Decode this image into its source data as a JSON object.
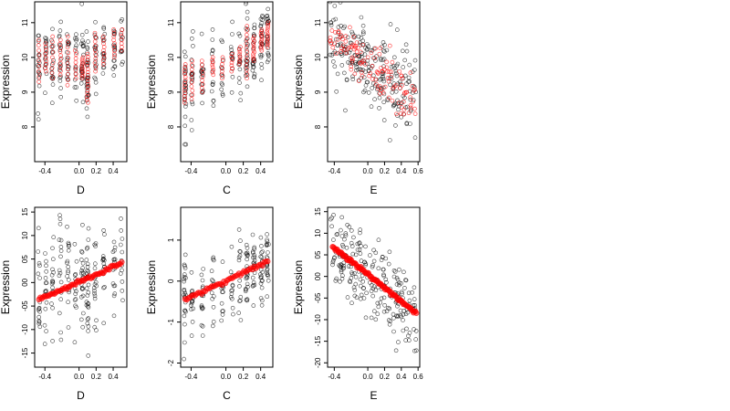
{
  "chart_data": [
    {
      "type": "scatter",
      "panel": "top-left",
      "xlabel": "D",
      "ylabel": "Expression",
      "xlim": [
        -0.52,
        0.56
      ],
      "ylim": [
        7.0,
        11.6
      ],
      "xticks": [
        -0.4,
        0.0,
        0.2,
        0.4
      ],
      "xtick_labels": [
        "-0.4",
        "0.0",
        "0.2",
        "0.4"
      ],
      "yticks": [
        8,
        9,
        10,
        11
      ],
      "ytick_labels": [
        "8",
        "9",
        "10",
        "11"
      ],
      "grid": false,
      "black_color": "#000000",
      "red_color": "#ff0000",
      "clusters": [
        {
          "x": -0.47,
          "mean": 9.9,
          "sd": 0.55,
          "n": 16,
          "red_lo": 9.3,
          "red_hi": 10.5
        },
        {
          "x": -0.39,
          "mean": 10.0,
          "sd": 0.6,
          "n": 16,
          "red_lo": 9.6,
          "red_hi": 10.4
        },
        {
          "x": -0.31,
          "mean": 9.95,
          "sd": 0.6,
          "n": 16,
          "red_lo": 9.4,
          "red_hi": 10.6
        },
        {
          "x": -0.22,
          "mean": 9.9,
          "sd": 0.65,
          "n": 18,
          "red_lo": 9.5,
          "red_hi": 10.5
        },
        {
          "x": -0.13,
          "mean": 9.9,
          "sd": 0.6,
          "n": 18,
          "red_lo": 9.2,
          "red_hi": 10.6
        },
        {
          "x": -0.04,
          "mean": 9.8,
          "sd": 0.6,
          "n": 14,
          "red_lo": 9.4,
          "red_hi": 10.2
        },
        {
          "x": 0.04,
          "mean": 9.8,
          "sd": 0.6,
          "n": 22,
          "red_lo": 9.4,
          "red_hi": 10.0
        },
        {
          "x": 0.1,
          "mean": 9.4,
          "sd": 0.6,
          "n": 30,
          "red_lo": 8.7,
          "red_hi": 10.1
        },
        {
          "x": 0.19,
          "mean": 10.1,
          "sd": 0.6,
          "n": 18,
          "red_lo": 9.6,
          "red_hi": 10.7
        },
        {
          "x": 0.29,
          "mean": 10.2,
          "sd": 0.55,
          "n": 16,
          "red_lo": 9.8,
          "red_hi": 10.6
        },
        {
          "x": 0.41,
          "mean": 10.3,
          "sd": 0.5,
          "n": 16,
          "red_lo": 10.0,
          "red_hi": 10.8
        },
        {
          "x": 0.5,
          "mean": 10.5,
          "sd": 0.45,
          "n": 12,
          "red_lo": 10.2,
          "red_hi": 10.8
        }
      ]
    },
    {
      "type": "scatter",
      "panel": "top-middle",
      "xlabel": "C",
      "ylabel": "Expression",
      "xlim": [
        -0.52,
        0.54
      ],
      "ylim": [
        7.0,
        11.6
      ],
      "xticks": [
        -0.4,
        0.0,
        0.2,
        0.4
      ],
      "xtick_labels": [
        "-0.4",
        "0.0",
        "0.2",
        "0.4"
      ],
      "yticks": [
        8,
        9,
        10,
        11
      ],
      "ytick_labels": [
        "8",
        "9",
        "10",
        "11"
      ],
      "grid": false,
      "black_color": "#000000",
      "red_color": "#ff0000",
      "clusters": [
        {
          "x": -0.47,
          "mean": 9.1,
          "sd": 0.65,
          "n": 24,
          "red_lo": 8.7,
          "red_hi": 9.8
        },
        {
          "x": -0.39,
          "mean": 9.3,
          "sd": 0.6,
          "n": 18,
          "red_lo": 8.8,
          "red_hi": 9.9
        },
        {
          "x": -0.27,
          "mean": 9.4,
          "sd": 0.55,
          "n": 16,
          "red_lo": 9.0,
          "red_hi": 9.9
        },
        {
          "x": -0.15,
          "mean": 9.7,
          "sd": 0.5,
          "n": 14,
          "red_lo": 9.5,
          "red_hi": 10.0
        },
        {
          "x": -0.04,
          "mean": 9.6,
          "sd": 0.5,
          "n": 12,
          "red_lo": 9.4,
          "red_hi": 10.0
        },
        {
          "x": 0.07,
          "mean": 9.8,
          "sd": 0.5,
          "n": 12,
          "red_lo": 9.6,
          "red_hi": 10.1
        },
        {
          "x": 0.16,
          "mean": 10.0,
          "sd": 0.5,
          "n": 14,
          "red_lo": 9.8,
          "red_hi": 10.3
        },
        {
          "x": 0.24,
          "mean": 10.1,
          "sd": 0.6,
          "n": 24,
          "red_lo": 9.4,
          "red_hi": 10.9
        },
        {
          "x": 0.32,
          "mean": 10.2,
          "sd": 0.55,
          "n": 22,
          "red_lo": 9.9,
          "red_hi": 10.6
        },
        {
          "x": 0.41,
          "mean": 10.4,
          "sd": 0.5,
          "n": 22,
          "red_lo": 10.2,
          "red_hi": 10.8
        },
        {
          "x": 0.48,
          "mean": 10.6,
          "sd": 0.45,
          "n": 22,
          "red_lo": 10.3,
          "red_hi": 11.0
        }
      ]
    },
    {
      "type": "scatter",
      "panel": "top-right",
      "xlabel": "E",
      "ylabel": "Expression",
      "xlim": [
        -0.48,
        0.62
      ],
      "ylim": [
        7.0,
        11.6
      ],
      "xticks": [
        -0.4,
        0.0,
        0.2,
        0.4,
        0.6
      ],
      "xtick_labels": [
        "-0.4",
        "0.0",
        "0.2",
        "0.4",
        "0.6"
      ],
      "yticks": [
        8,
        9,
        10,
        11
      ],
      "ytick_labels": [
        "8",
        "9",
        "10",
        "11"
      ],
      "grid": false,
      "black_color": "#000000",
      "red_color": "#ff0000",
      "cloud": {
        "x_min": -0.45,
        "x_max": 0.58,
        "n": 230,
        "y_at_xmin": 10.5,
        "y_at_xmax": 8.8,
        "sd": 0.6
      },
      "red_cloud": {
        "x_min": -0.45,
        "x_max": 0.58,
        "n": 120,
        "y_at_xmin": 10.6,
        "y_at_xmax": 8.7,
        "sd": 0.35
      }
    },
    {
      "type": "scatter",
      "panel": "bottom-left",
      "xlabel": "D",
      "ylabel": "Expression",
      "xlim": [
        -0.52,
        0.56
      ],
      "ylim": [
        -1.8,
        1.6
      ],
      "xticks": [
        -0.4,
        0.0,
        0.2,
        0.4
      ],
      "xtick_labels": [
        "-0.4",
        "0.0",
        "0.2",
        "0.4"
      ],
      "yticks": [
        -1.5,
        -1.0,
        -0.5,
        0.0,
        0.5,
        1.0,
        1.5
      ],
      "ytick_labels": [
        "-15",
        "-10",
        "-05",
        "00",
        "05",
        "10",
        "15"
      ],
      "grid": false,
      "black_color": "#000000",
      "red_color": "#ff0000",
      "clusters": [
        {
          "x": -0.47,
          "mean": -0.3,
          "sd": 0.5,
          "n": 16
        },
        {
          "x": -0.39,
          "mean": -0.25,
          "sd": 0.55,
          "n": 16
        },
        {
          "x": -0.31,
          "mean": -0.1,
          "sd": 0.55,
          "n": 16
        },
        {
          "x": -0.22,
          "mean": -0.05,
          "sd": 0.6,
          "n": 18
        },
        {
          "x": -0.13,
          "mean": 0.0,
          "sd": 0.6,
          "n": 18
        },
        {
          "x": -0.04,
          "mean": 0.05,
          "sd": 0.55,
          "n": 14
        },
        {
          "x": 0.04,
          "mean": 0.05,
          "sd": 0.55,
          "n": 22
        },
        {
          "x": 0.1,
          "mean": -0.05,
          "sd": 0.55,
          "n": 30
        },
        {
          "x": 0.19,
          "mean": 0.2,
          "sd": 0.55,
          "n": 18
        },
        {
          "x": 0.29,
          "mean": 0.3,
          "sd": 0.5,
          "n": 16
        },
        {
          "x": 0.41,
          "mean": 0.4,
          "sd": 0.45,
          "n": 16
        },
        {
          "x": 0.5,
          "mean": 0.45,
          "sd": 0.4,
          "n": 12
        }
      ],
      "fit": {
        "x_min": -0.47,
        "x_max": 0.5,
        "y_at_xmin": -0.38,
        "y_at_xmax": 0.42,
        "n": 60
      }
    },
    {
      "type": "scatter",
      "panel": "bottom-middle",
      "xlabel": "C",
      "ylabel": "Expression",
      "xlim": [
        -0.52,
        0.54
      ],
      "ylim": [
        -2.1,
        1.8
      ],
      "xticks": [
        -0.4,
        0.0,
        0.2,
        0.4
      ],
      "xtick_labels": [
        "-0.4",
        "0.0",
        "0.2",
        "0.4"
      ],
      "yticks": [
        -2,
        -1,
        0,
        1
      ],
      "ytick_labels": [
        "-2",
        "-1",
        "0",
        "1"
      ],
      "grid": false,
      "black_color": "#000000",
      "red_color": "#ff0000",
      "clusters": [
        {
          "x": -0.47,
          "mean": -0.5,
          "sd": 0.55,
          "n": 24
        },
        {
          "x": -0.39,
          "mean": -0.4,
          "sd": 0.5,
          "n": 18
        },
        {
          "x": -0.27,
          "mean": -0.3,
          "sd": 0.5,
          "n": 16
        },
        {
          "x": -0.15,
          "mean": -0.15,
          "sd": 0.45,
          "n": 14
        },
        {
          "x": -0.04,
          "mean": -0.05,
          "sd": 0.45,
          "n": 12
        },
        {
          "x": 0.07,
          "mean": 0.05,
          "sd": 0.45,
          "n": 12
        },
        {
          "x": 0.16,
          "mean": 0.15,
          "sd": 0.45,
          "n": 14
        },
        {
          "x": 0.24,
          "mean": 0.25,
          "sd": 0.55,
          "n": 24
        },
        {
          "x": 0.32,
          "mean": 0.3,
          "sd": 0.5,
          "n": 22
        },
        {
          "x": 0.41,
          "mean": 0.4,
          "sd": 0.5,
          "n": 22
        },
        {
          "x": 0.48,
          "mean": 0.45,
          "sd": 0.45,
          "n": 22
        }
      ],
      "fit": {
        "x_min": -0.47,
        "x_max": 0.48,
        "y_at_xmin": -0.45,
        "y_at_xmax": 0.48,
        "n": 50
      }
    },
    {
      "type": "scatter",
      "panel": "bottom-right",
      "xlabel": "E",
      "ylabel": "Expression",
      "xlim": [
        -0.48,
        0.62
      ],
      "ylim": [
        -2.1,
        1.6
      ],
      "xticks": [
        -0.4,
        0.0,
        0.2,
        0.4,
        0.6
      ],
      "xtick_labels": [
        "-0.4",
        "0.0",
        "0.2",
        "0.4",
        "0.6"
      ],
      "yticks": [
        -2.0,
        -1.5,
        -1.0,
        -0.5,
        0.0,
        0.5,
        1.0,
        1.5
      ],
      "ytick_labels": [
        "-20",
        "-15",
        "-10",
        "-05",
        "00",
        "05",
        "10",
        "15"
      ],
      "grid": false,
      "black_color": "#000000",
      "red_color": "#ff0000",
      "cloud": {
        "x_min": -0.45,
        "x_max": 0.58,
        "n": 230,
        "y_at_xmin": 0.75,
        "y_at_xmax": -0.9,
        "sd": 0.45
      },
      "fit": {
        "x_min": -0.42,
        "x_max": 0.58,
        "y_at_xmin": 0.7,
        "y_at_xmax": -0.85,
        "n": 90
      }
    }
  ]
}
